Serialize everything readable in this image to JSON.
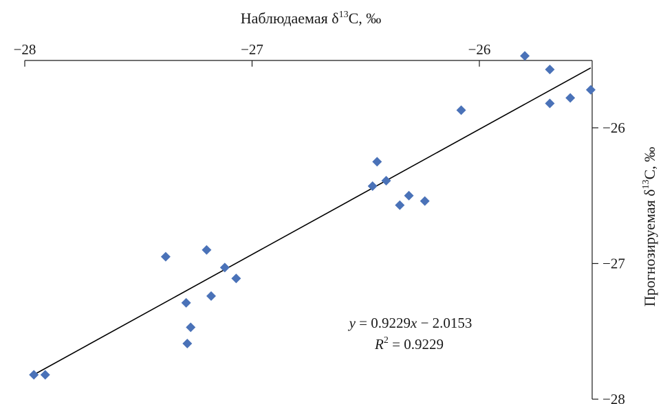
{
  "chart_data": {
    "type": "scatter",
    "title": "",
    "xlabel": {
      "prefix": "Наблюдаемая δ",
      "sup": "13",
      "suffix": "C, ‰"
    },
    "ylabel": {
      "prefix": "Прогнозируемая δ",
      "sup": "13",
      "suffix": "C, ‰"
    },
    "xlim": [
      -28,
      -25.5
    ],
    "ylim": [
      -28,
      -25.5
    ],
    "x_ticks": [
      -28,
      -27,
      -26
    ],
    "x_tick_labels": [
      "−28",
      "−27",
      "−26"
    ],
    "y_ticks": [
      -26,
      -27,
      -28
    ],
    "y_tick_labels": [
      "−26",
      "−27",
      "−28"
    ],
    "x_axis_position": "top",
    "y_axis_position": "right",
    "grid": false,
    "legend": "none",
    "marker": "diamond",
    "marker_color": "#4a72b8",
    "points": [
      {
        "x": -27.96,
        "y": -27.82
      },
      {
        "x": -27.91,
        "y": -27.82
      },
      {
        "x": -27.38,
        "y": -26.95
      },
      {
        "x": -27.29,
        "y": -27.29
      },
      {
        "x": -27.285,
        "y": -27.59
      },
      {
        "x": -27.27,
        "y": -27.47
      },
      {
        "x": -27.2,
        "y": -26.9
      },
      {
        "x": -27.18,
        "y": -27.24
      },
      {
        "x": -27.12,
        "y": -27.03
      },
      {
        "x": -27.07,
        "y": -27.11
      },
      {
        "x": -26.47,
        "y": -26.43
      },
      {
        "x": -26.45,
        "y": -26.25
      },
      {
        "x": -26.41,
        "y": -26.39
      },
      {
        "x": -26.35,
        "y": -26.57
      },
      {
        "x": -26.31,
        "y": -26.5
      },
      {
        "x": -26.24,
        "y": -26.54
      },
      {
        "x": -26.08,
        "y": -25.87
      },
      {
        "x": -25.8,
        "y": -25.47
      },
      {
        "x": -25.69,
        "y": -25.57
      },
      {
        "x": -25.69,
        "y": -25.82
      },
      {
        "x": -25.6,
        "y": -25.78
      },
      {
        "x": -25.51,
        "y": -25.72
      }
    ],
    "trendline": {
      "slope": 0.9229,
      "intercept": -2.0153,
      "x_range": [
        -27.96,
        -25.51
      ]
    },
    "annotation": {
      "equation": {
        "y": "y",
        "eq": " = 0.9229",
        "x": "x",
        "rest": " − 2.0153"
      },
      "r2": {
        "r": "R",
        "sup": "2",
        "rest": " = 0.9229"
      }
    }
  }
}
